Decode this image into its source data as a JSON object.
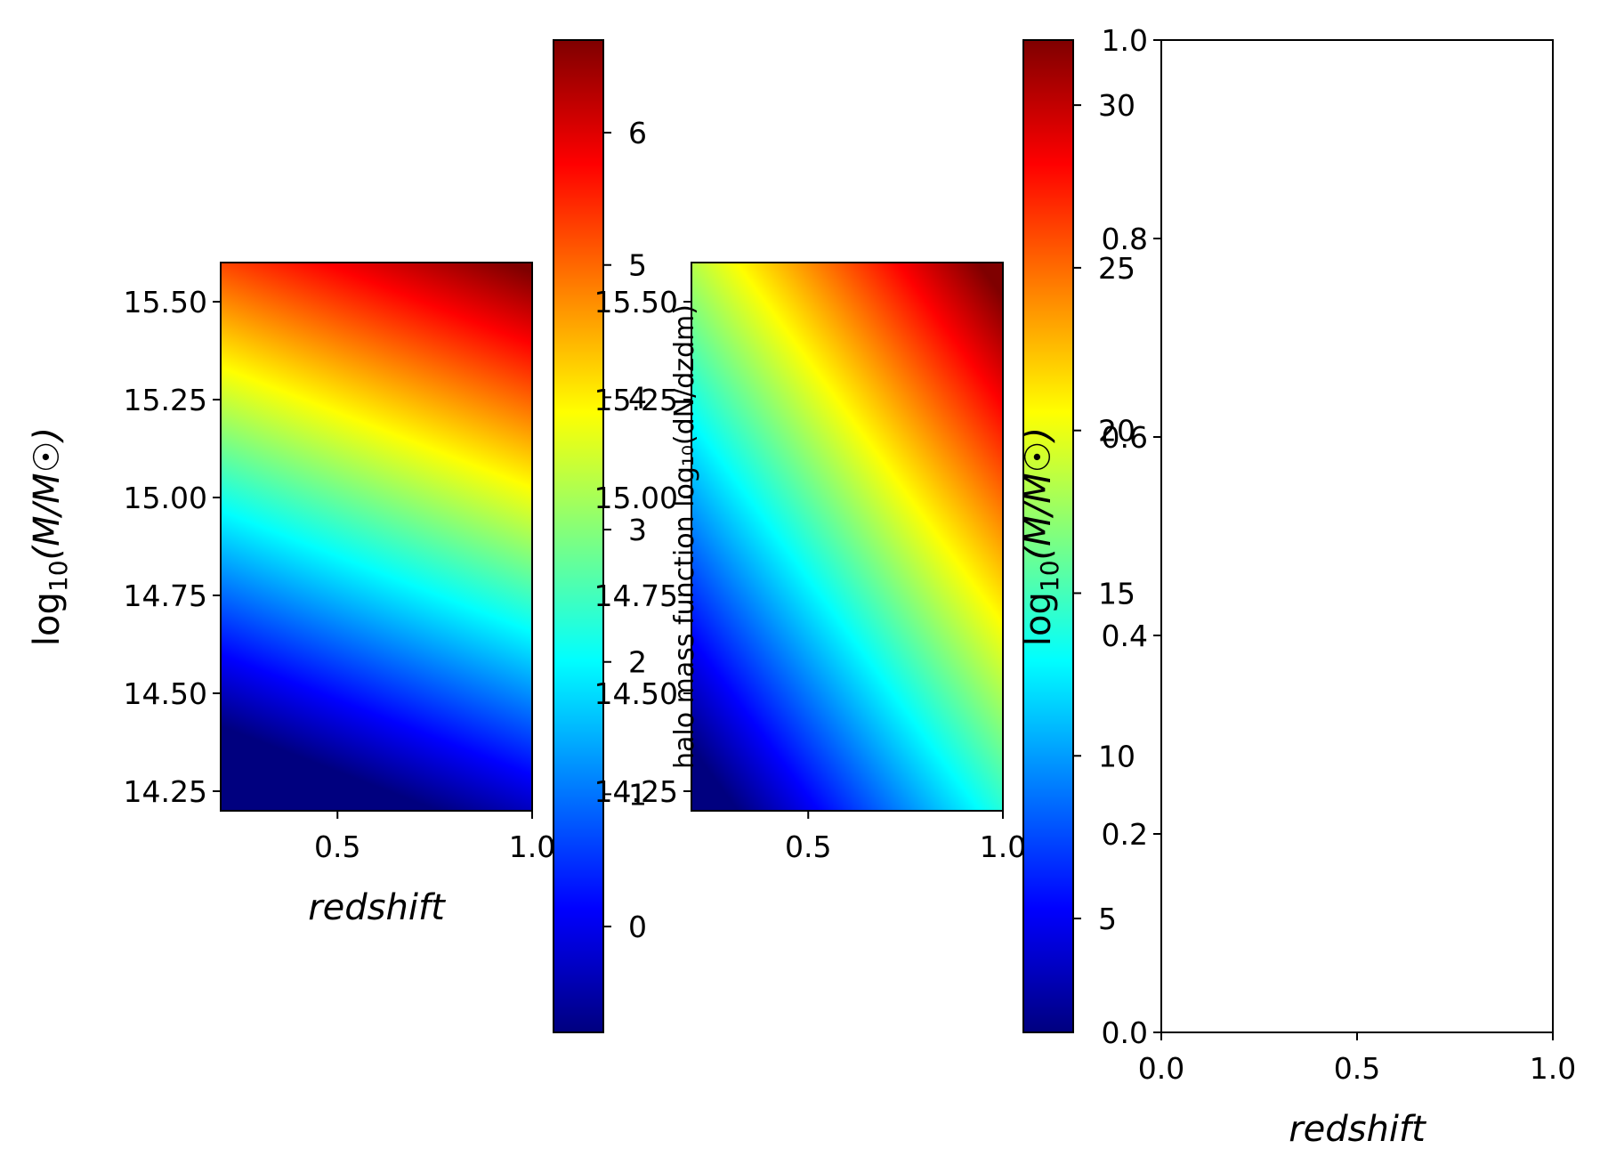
{
  "figure": {
    "colormap": "jet",
    "colormap_stops": [
      "#00007f",
      "#0000ff",
      "#007fff",
      "#00ffff",
      "#7fff7f",
      "#ffff00",
      "#ff7f00",
      "#ff0000",
      "#7f0000"
    ]
  },
  "chart_data": [
    {
      "type": "heatmap",
      "title": "",
      "xlabel": "redshift",
      "ylabel": "log₁₀(M/M☉)",
      "ylabel_parts": {
        "log": "log",
        "sub": "10",
        "expr": "(M/M☉)"
      },
      "xlim": [
        0.2,
        1.0
      ],
      "ylim": [
        14.2,
        15.6
      ],
      "x_ticks": [
        0.5,
        1.0
      ],
      "x_tick_labels": [
        "0.5",
        "1.0"
      ],
      "y_ticks": [
        14.25,
        14.5,
        14.75,
        15.0,
        15.25,
        15.5
      ],
      "y_tick_labels": [
        "14.25",
        "14.50",
        "14.75",
        "15.00",
        "15.25",
        "15.50"
      ],
      "colorbar": {
        "label": "",
        "range": [
          -0.8,
          6.7
        ],
        "ticks": [
          0,
          1,
          2,
          3,
          4,
          5,
          6
        ],
        "tick_labels": [
          "0",
          "1",
          "2",
          "3",
          "4",
          "5",
          "6"
        ]
      }
    },
    {
      "type": "heatmap",
      "title": "",
      "xlabel": "",
      "ylabel": "halo mass function log₁₀(dN/dzdm)",
      "xlim": [
        0.2,
        1.0
      ],
      "ylim": [
        14.2,
        15.6
      ],
      "x_ticks": [
        0.5,
        1.0
      ],
      "x_tick_labels": [
        "0.5",
        "1.0"
      ],
      "y_ticks": [
        14.25,
        14.5,
        14.75,
        15.0,
        15.25,
        15.5
      ],
      "y_tick_labels": [
        "14.25",
        "14.50",
        "14.75",
        "15.00",
        "15.25",
        "15.50"
      ],
      "colorbar": {
        "label": "",
        "range": [
          1.5,
          32
        ],
        "ticks": [
          5,
          10,
          15,
          20,
          25,
          30
        ],
        "tick_labels": [
          "5",
          "10",
          "15",
          "20",
          "25",
          "30"
        ]
      }
    },
    {
      "type": "scatter",
      "title": "",
      "xlabel": "redshift",
      "ylabel": "log₁₀(M/M☉)",
      "ylabel_parts": {
        "log": "log",
        "sub": "10",
        "expr": "(M/M☉)"
      },
      "xlim": [
        0.0,
        1.0
      ],
      "ylim": [
        0.0,
        1.0
      ],
      "x_ticks": [
        0.0,
        0.5,
        1.0
      ],
      "x_tick_labels": [
        "0.0",
        "0.5",
        "1.0"
      ],
      "y_ticks": [
        0.0,
        0.2,
        0.4,
        0.6,
        0.8,
        1.0
      ],
      "y_tick_labels": [
        "0.0",
        "0.2",
        "0.4",
        "0.6",
        "0.8",
        "1.0"
      ],
      "series": []
    }
  ]
}
